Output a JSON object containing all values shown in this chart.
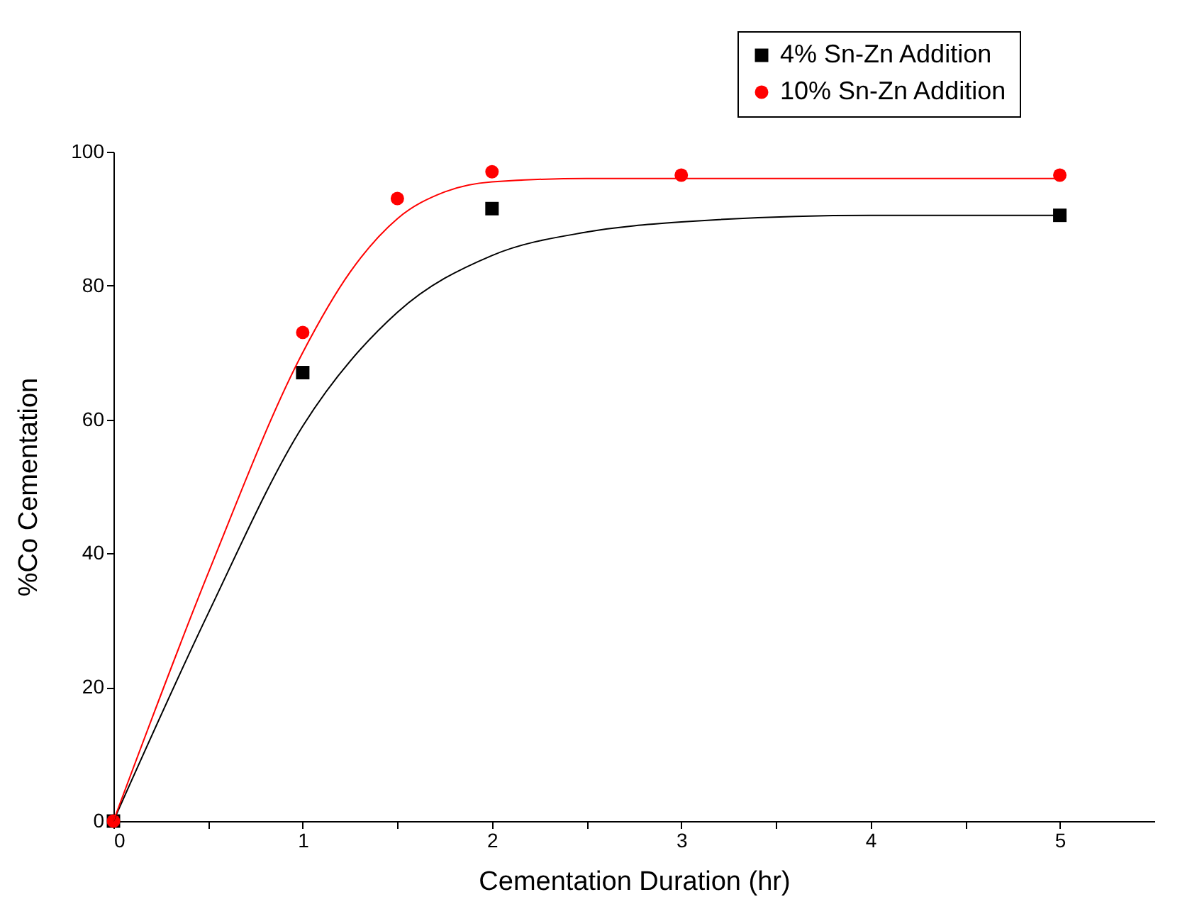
{
  "chart_data": {
    "type": "scatter",
    "xlabel": "Cementation Duration (hr)",
    "ylabel": "%Co Cementation",
    "xlim": [
      0,
      5.5
    ],
    "xticks": [
      0,
      {
        "value": 0.5,
        "label": null
      },
      1,
      {
        "value": 1.5,
        "label": null
      },
      2,
      {
        "value": 2.5,
        "label": null
      },
      3,
      {
        "value": 3.5,
        "label": null
      },
      4,
      {
        "value": 4.5,
        "label": null
      },
      5
    ],
    "ylim": [
      0,
      100
    ],
    "yticks": [
      0,
      20,
      40,
      60,
      80,
      100
    ],
    "grid": false,
    "legend": "top right",
    "series": [
      {
        "name": "4% Sn-Zn Addition",
        "color": "#000000",
        "marker": "square",
        "x": [
          0,
          1,
          2,
          5
        ],
        "values": [
          0,
          67,
          91.5,
          90.5
        ]
      },
      {
        "name": "10% Sn-Zn Addition",
        "color": "#ff0000",
        "marker": "circle",
        "x": [
          0,
          1,
          1.5,
          2,
          3,
          5
        ],
        "values": [
          0,
          73,
          93,
          97,
          96.5,
          96.5
        ]
      },
      {
        "type": "line",
        "color": "#000000",
        "x": [
          0,
          0.5,
          1,
          1.5,
          2,
          2.5,
          3,
          4,
          5
        ],
        "values": [
          0,
          31,
          59,
          76,
          84.5,
          88,
          89.5,
          90.5,
          90.5
        ]
      },
      {
        "type": "line",
        "color": "#ff0000",
        "x": [
          0,
          0.5,
          1,
          1.25,
          1.5,
          1.75,
          2,
          2.5,
          3,
          5
        ],
        "values": [
          0,
          37,
          70,
          82,
          90,
          94,
          95.5,
          96,
          96,
          96
        ]
      }
    ]
  }
}
